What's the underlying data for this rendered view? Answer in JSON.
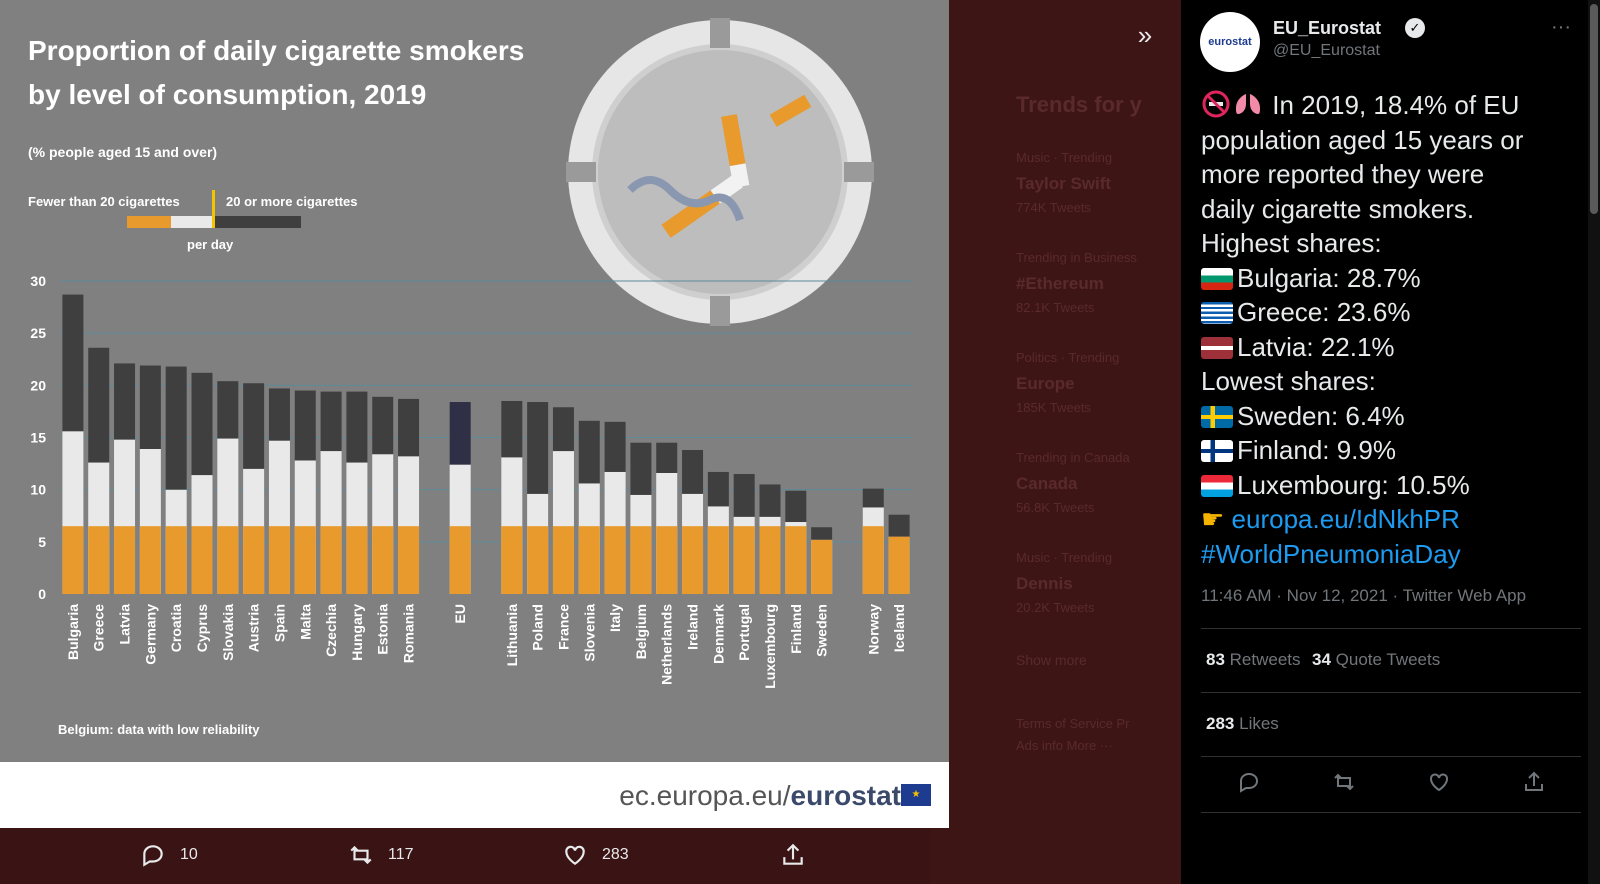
{
  "backdrop": {
    "trend_heading": "Trends for y",
    "trends": [
      {
        "context": "Music · Trending",
        "name": "Taylor Swift",
        "count": "774K Tweets"
      },
      {
        "context": "Trending in Business",
        "name": "#Ethereum",
        "count": "82.1K Tweets"
      },
      {
        "context": "Politics · Trending",
        "name": "Europe",
        "count": "185K Tweets"
      },
      {
        "context": "Trending in Canada",
        "name": "Canada",
        "count": "56.8K Tweets"
      },
      {
        "context": "Music · Trending",
        "name": "Dennis",
        "count": "20.2K Tweets"
      }
    ],
    "show_more": "Show more",
    "footer_links": "Terms of Service  Pr",
    "footer_links2": "Ads info  More ···"
  },
  "image": {
    "title_line1": "Proportion of daily cigarette smokers",
    "title_line2": "by level of consumption, 2019",
    "subtitle": "(% people aged 15 and over)",
    "legend_left": "Fewer than 20 cigarettes",
    "legend_right": "20 or more cigarettes",
    "legend_per_day": "per day",
    "note": "Belgium: data with low reliability",
    "footer_prefix": "ec.europa.eu/",
    "footer_brand": "eurostat"
  },
  "chart_data": {
    "type": "bar",
    "stacked": true,
    "title": "Proportion of daily cigarette smokers by level of consumption, 2019",
    "subtitle": "(% people aged 15 and over)",
    "ylim": [
      0,
      30
    ],
    "yticks": [
      0,
      5,
      10,
      15,
      20,
      25,
      30
    ],
    "grid": true,
    "categories": [
      "Bulgaria",
      "Greece",
      "Latvia",
      "Germany",
      "Croatia",
      "Cyprus",
      "Slovakia",
      "Austria",
      "Spain",
      "Malta",
      "Czechia",
      "Hungary",
      "Estonia",
      "Romania",
      "EU",
      "Lithuania",
      "Poland",
      "France",
      "Slovenia",
      "Italy",
      "Belgium",
      "Netherlands",
      "Ireland",
      "Denmark",
      "Portugal",
      "Luxembourg",
      "Finland",
      "Sweden",
      "Norway",
      "Iceland"
    ],
    "series": [
      {
        "name": "Fewer than 20 cigarettes",
        "values": [
          15.6,
          12.6,
          14.8,
          13.9,
          10.0,
          11.4,
          14.9,
          12.0,
          14.7,
          12.8,
          13.7,
          12.6,
          13.4,
          13.2,
          12.4,
          13.1,
          9.6,
          13.7,
          10.6,
          11.7,
          9.5,
          11.6,
          9.6,
          8.4,
          7.4,
          7.4,
          6.9,
          5.2,
          8.3,
          5.5
        ]
      },
      {
        "name": "20 or more cigarettes",
        "values": [
          13.1,
          11.0,
          7.3,
          8.0,
          11.8,
          9.8,
          5.5,
          8.2,
          5.0,
          6.7,
          5.7,
          6.8,
          5.5,
          5.5,
          6.0,
          5.4,
          8.8,
          4.2,
          6.0,
          4.8,
          5.0,
          2.9,
          4.2,
          3.3,
          4.1,
          3.1,
          3.0,
          1.2,
          1.8,
          2.1
        ]
      }
    ],
    "note": "Belgium: data with low reliability"
  },
  "bottom_bar": {
    "replies": "10",
    "retweets": "117",
    "likes": "283"
  },
  "tweet": {
    "author_name": "EU_Eurostat",
    "handle": "@EU_Eurostat",
    "avatar_text": "eurostat",
    "text_intro": [
      "In 2019, 18.4% of EU",
      "population aged 15 years or",
      "more reported they were",
      "daily cigarette smokers."
    ],
    "highest_label": "Highest shares:",
    "highest": [
      {
        "flag": "bulgaria",
        "text": "Bulgaria: 28.7%"
      },
      {
        "flag": "greece",
        "text": "Greece: 23.6%"
      },
      {
        "flag": "latvia",
        "text": "Latvia: 22.1%"
      }
    ],
    "lowest_label": "Lowest shares:",
    "lowest": [
      {
        "flag": "sweden",
        "text": "Sweden: 6.4%"
      },
      {
        "flag": "finland",
        "text": "Finland: 9.9%"
      },
      {
        "flag": "luxembourg",
        "text": "Luxembourg: 10.5%"
      }
    ],
    "link": "europa.eu/!dNkhPR",
    "hashtag": "#WorldPneumoniaDay",
    "timestamp": "11:46 AM · Nov 12, 2021 · Twitter Web App",
    "retweets_count": "83",
    "retweets_label": "Retweets",
    "quotes_count": "34",
    "quotes_label": "Quote Tweets",
    "likes_count": "283",
    "likes_label": "Likes"
  }
}
